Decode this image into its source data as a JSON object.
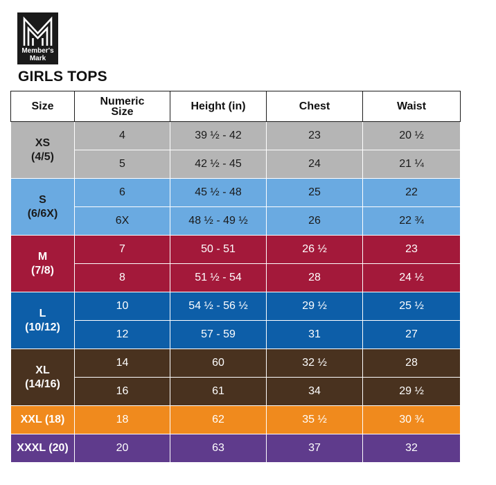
{
  "logo": {
    "line1": "Member's",
    "line2": "Mark"
  },
  "title": "GIRLS TOPS",
  "headers": {
    "size": "Size",
    "numeric_line1": "Numeric",
    "numeric_line2": "Size",
    "height": "Height (in)",
    "chest": "Chest",
    "waist": "Waist"
  },
  "colors": {
    "xs": "#b5b5b5",
    "s": "#6aaae1",
    "m": "#a3193a",
    "l": "#0d5ea8",
    "xl": "#49321f",
    "xxl": "#f08a1d",
    "xxxl": "#5f3b8c"
  },
  "groups": [
    {
      "size_line1": "XS",
      "size_line2": "(4/5)",
      "rows": [
        {
          "numeric": "4",
          "height": "39 ½ - 42",
          "chest": "23",
          "waist": "20 ½"
        },
        {
          "numeric": "5",
          "height": "42 ½ - 45",
          "chest": "24",
          "waist": "21 ¼"
        }
      ]
    },
    {
      "size_line1": "S",
      "size_line2": "(6/6X)",
      "rows": [
        {
          "numeric": "6",
          "height": "45 ½ - 48",
          "chest": "25",
          "waist": "22"
        },
        {
          "numeric": "6X",
          "height": "48 ½ - 49 ½",
          "chest": "26",
          "waist": "22 ¾"
        }
      ]
    },
    {
      "size_line1": "M",
      "size_line2": "(7/8)",
      "rows": [
        {
          "numeric": "7",
          "height": "50 - 51",
          "chest": "26 ½",
          "waist": "23"
        },
        {
          "numeric": "8",
          "height": "51 ½ - 54",
          "chest": "28",
          "waist": "24 ½"
        }
      ]
    },
    {
      "size_line1": "L",
      "size_line2": "(10/12)",
      "rows": [
        {
          "numeric": "10",
          "height": "54 ½ - 56 ½",
          "chest": "29 ½",
          "waist": "25 ½"
        },
        {
          "numeric": "12",
          "height": "57 - 59",
          "chest": "31",
          "waist": "27"
        }
      ]
    },
    {
      "size_line1": "XL",
      "size_line2": "(14/16)",
      "rows": [
        {
          "numeric": "14",
          "height": "60",
          "chest": "32 ½",
          "waist": "28"
        },
        {
          "numeric": "16",
          "height": "61",
          "chest": "34",
          "waist": "29 ½"
        }
      ]
    },
    {
      "size_line1": "XXL (18)",
      "rows": [
        {
          "numeric": "18",
          "height": "62",
          "chest": "35 ½",
          "waist": "30 ¾"
        }
      ]
    },
    {
      "size_line1": "XXXL (20)",
      "rows": [
        {
          "numeric": "20",
          "height": "63",
          "chest": "37",
          "waist": "32"
        }
      ]
    }
  ]
}
